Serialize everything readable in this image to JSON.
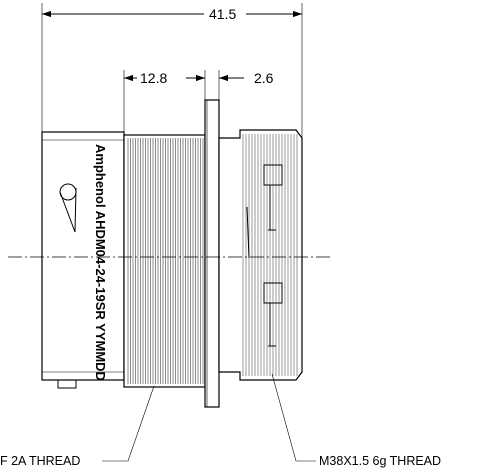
{
  "dimensions": {
    "overall_length": "41.5",
    "thread_length": "12.8",
    "rear_offset": "2.6"
  },
  "housing_marking": "Amphenol AHDM04-24-19SR YYMMDD",
  "callouts": {
    "left_thread": "F 2A THREAD",
    "right_thread": "M38X1.5 6g THREAD"
  },
  "colors": {
    "line": "#000000",
    "background": "#ffffff"
  },
  "icons": {
    "arrowheads": "dimension-arrow-icon",
    "keyway": "keyway-icon"
  }
}
